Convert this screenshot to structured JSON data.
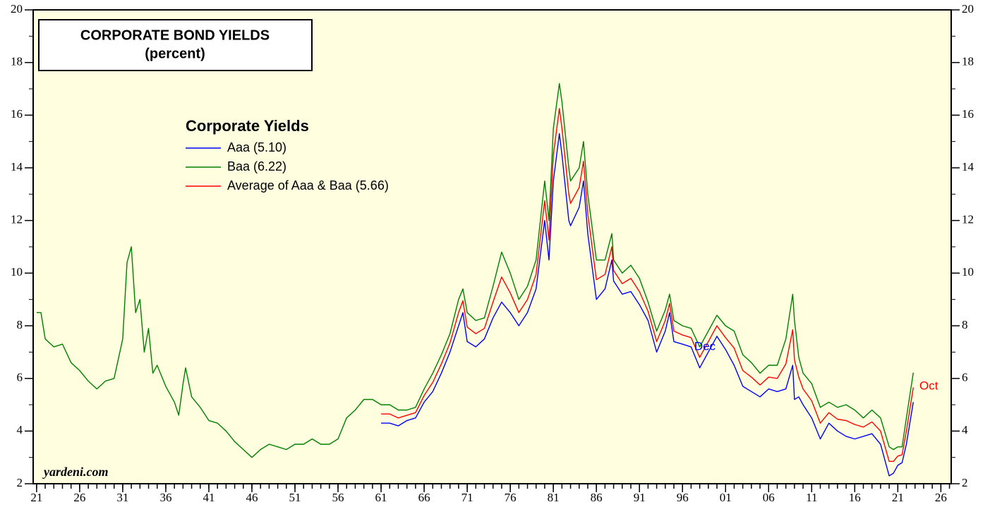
{
  "chart_data": {
    "type": "line",
    "title": [
      "CORPORATE BOND YIELDS",
      "(percent)"
    ],
    "legend_title": "Corporate Yields",
    "source": "yardeni.com",
    "xlim": [
      1920.6,
      2027.2
    ],
    "xticks": [
      {
        "value": 1921,
        "label": "21"
      },
      {
        "value": 1926,
        "label": "26"
      },
      {
        "value": 1931,
        "label": "31"
      },
      {
        "value": 1936,
        "label": "36"
      },
      {
        "value": 1941,
        "label": "41"
      },
      {
        "value": 1946,
        "label": "46"
      },
      {
        "value": 1951,
        "label": "51"
      },
      {
        "value": 1956,
        "label": "56"
      },
      {
        "value": 1961,
        "label": "61"
      },
      {
        "value": 1966,
        "label": "66"
      },
      {
        "value": 1971,
        "label": "71"
      },
      {
        "value": 1976,
        "label": "76"
      },
      {
        "value": 1981,
        "label": "81"
      },
      {
        "value": 1986,
        "label": "86"
      },
      {
        "value": 1991,
        "label": "91"
      },
      {
        "value": 1996,
        "label": "96"
      },
      {
        "value": 2001,
        "label": "01"
      },
      {
        "value": 2006,
        "label": "06"
      },
      {
        "value": 2011,
        "label": "11"
      },
      {
        "value": 2016,
        "label": "16"
      },
      {
        "value": 2021,
        "label": "21"
      },
      {
        "value": 2026,
        "label": "26"
      }
    ],
    "xminor_step": 1,
    "ylim": [
      2,
      20
    ],
    "yticks": [
      2,
      4,
      6,
      8,
      10,
      12,
      14,
      16,
      18,
      20
    ],
    "yminor_step": 1,
    "grid": false,
    "background": "#ffffe0",
    "series": [
      {
        "name": "Aaa (5.10)",
        "color": "#0000ff",
        "x": [
          1961,
          1962,
          1963,
          1964,
          1965,
          1966,
          1967,
          1968,
          1969,
          1970,
          1970.5,
          1971,
          1972,
          1973,
          1974,
          1975,
          1976,
          1977,
          1978,
          1979,
          1980,
          1980.5,
          1981,
          1981.7,
          1982,
          1982.8,
          1983,
          1984,
          1984.5,
          1985,
          1986,
          1987,
          1987.8,
          1988,
          1989,
          1990,
          1991,
          1992,
          1993,
          1994,
          1994.5,
          1995,
          1996,
          1997,
          1998,
          1999,
          2000,
          2001,
          2002,
          2003,
          2004,
          2005,
          2006,
          2007,
          2008,
          2008.8,
          2009,
          2009.5,
          2010,
          2011,
          2012,
          2013,
          2014,
          2015,
          2016,
          2017,
          2018,
          2019,
          2020,
          2020.5,
          2021,
          2021.5,
          2022,
          2022.8
        ],
        "values": [
          4.3,
          4.3,
          4.2,
          4.4,
          4.5,
          5.1,
          5.5,
          6.2,
          7.0,
          8.0,
          8.5,
          7.4,
          7.2,
          7.5,
          8.3,
          8.9,
          8.5,
          8.0,
          8.5,
          9.4,
          12.0,
          10.5,
          13.5,
          15.3,
          14.5,
          12.0,
          11.8,
          12.5,
          13.5,
          11.5,
          9.0,
          9.4,
          10.5,
          9.7,
          9.2,
          9.3,
          8.8,
          8.2,
          7.0,
          7.8,
          8.5,
          7.4,
          7.3,
          7.2,
          6.4,
          7.0,
          7.6,
          7.1,
          6.5,
          5.7,
          5.5,
          5.3,
          5.6,
          5.5,
          5.6,
          6.5,
          5.2,
          5.3,
          5.0,
          4.5,
          3.7,
          4.3,
          4.0,
          3.8,
          3.7,
          3.8,
          3.9,
          3.5,
          2.3,
          2.4,
          2.7,
          2.8,
          3.5,
          5.1
        ]
      },
      {
        "name": "Baa (6.22)",
        "color": "#008000",
        "x": [
          1921,
          1921.5,
          1922,
          1923,
          1924,
          1925,
          1926,
          1927,
          1928,
          1929,
          1930,
          1931,
          1931.5,
          1932,
          1932.5,
          1933,
          1933.5,
          1934,
          1934.5,
          1935,
          1936,
          1937,
          1937.5,
          1938,
          1938.3,
          1939,
          1940,
          1941,
          1942,
          1943,
          1944,
          1945,
          1946,
          1947,
          1948,
          1949,
          1950,
          1951,
          1952,
          1953,
          1954,
          1955,
          1956,
          1957,
          1958,
          1959,
          1960,
          1961,
          1962,
          1963,
          1964,
          1965,
          1966,
          1967,
          1968,
          1969,
          1970,
          1970.5,
          1971,
          1972,
          1973,
          1974,
          1975,
          1976,
          1977,
          1978,
          1979,
          1980,
          1980.5,
          1981,
          1981.7,
          1982,
          1982.8,
          1983,
          1984,
          1984.5,
          1985,
          1986,
          1987,
          1987.8,
          1988,
          1989,
          1990,
          1991,
          1992,
          1993,
          1994,
          1994.5,
          1995,
          1996,
          1997,
          1998,
          1999,
          2000,
          2001,
          2002,
          2003,
          2004,
          2005,
          2006,
          2007,
          2008,
          2008.8,
          2009,
          2009.5,
          2010,
          2011,
          2012,
          2013,
          2014,
          2015,
          2016,
          2017,
          2018,
          2019,
          2020,
          2020.5,
          2021,
          2021.5,
          2022,
          2022.8
        ],
        "values": [
          8.5,
          8.5,
          7.5,
          7.2,
          7.3,
          6.6,
          6.3,
          5.9,
          5.6,
          5.9,
          6.0,
          7.5,
          10.4,
          11.0,
          8.5,
          9.0,
          7.0,
          7.9,
          6.2,
          6.5,
          5.7,
          5.1,
          4.6,
          5.8,
          6.4,
          5.3,
          4.9,
          4.4,
          4.3,
          4.0,
          3.6,
          3.3,
          3.0,
          3.3,
          3.5,
          3.4,
          3.3,
          3.5,
          3.5,
          3.7,
          3.5,
          3.5,
          3.7,
          4.5,
          4.8,
          5.2,
          5.2,
          5.0,
          5.0,
          4.8,
          4.8,
          4.9,
          5.6,
          6.2,
          6.9,
          7.7,
          9.0,
          9.4,
          8.5,
          8.2,
          8.3,
          9.5,
          10.8,
          10.0,
          9.0,
          9.5,
          10.5,
          13.5,
          12.0,
          15.5,
          17.2,
          16.5,
          14.0,
          13.5,
          14.0,
          15.0,
          13.0,
          10.5,
          10.5,
          11.5,
          10.5,
          10.0,
          10.3,
          9.8,
          8.9,
          7.8,
          8.6,
          9.2,
          8.2,
          8.0,
          7.9,
          7.2,
          7.8,
          8.4,
          8.0,
          7.8,
          6.9,
          6.6,
          6.2,
          6.5,
          6.5,
          7.5,
          9.2,
          8.2,
          6.8,
          6.2,
          5.8,
          4.9,
          5.1,
          4.9,
          5.0,
          4.8,
          4.5,
          4.8,
          4.5,
          3.4,
          3.3,
          3.4,
          3.4,
          4.5,
          6.22
        ]
      },
      {
        "name": "Average of Aaa & Baa (5.66)",
        "color": "#ff0000",
        "x": [
          1961,
          1962,
          1963,
          1964,
          1965,
          1966,
          1967,
          1968,
          1969,
          1970,
          1970.5,
          1971,
          1972,
          1973,
          1974,
          1975,
          1976,
          1977,
          1978,
          1979,
          1980,
          1980.5,
          1981,
          1981.7,
          1982,
          1982.8,
          1983,
          1984,
          1984.5,
          1985,
          1986,
          1987,
          1987.8,
          1988,
          1989,
          1990,
          1991,
          1992,
          1993,
          1994,
          1994.5,
          1995,
          1996,
          1997,
          1998,
          1999,
          2000,
          2001,
          2002,
          2003,
          2004,
          2005,
          2006,
          2007,
          2008,
          2008.8,
          2009,
          2009.5,
          2010,
          2011,
          2012,
          2013,
          2014,
          2015,
          2016,
          2017,
          2018,
          2019,
          2020,
          2020.5,
          2021,
          2021.5,
          2022,
          2022.8
        ],
        "values": [
          4.65,
          4.65,
          4.5,
          4.6,
          4.7,
          5.35,
          5.85,
          6.55,
          7.35,
          8.5,
          8.95,
          7.95,
          7.7,
          7.9,
          8.9,
          9.85,
          9.25,
          8.5,
          9.0,
          9.95,
          12.75,
          11.25,
          14.5,
          16.25,
          15.5,
          13.0,
          12.65,
          13.25,
          14.25,
          12.25,
          9.75,
          9.95,
          11.0,
          10.1,
          9.6,
          9.8,
          9.3,
          8.55,
          7.4,
          8.2,
          8.85,
          7.8,
          7.65,
          7.55,
          6.8,
          7.4,
          8.0,
          7.55,
          7.15,
          6.3,
          6.05,
          5.75,
          6.05,
          6.0,
          6.55,
          7.85,
          6.7,
          6.05,
          5.6,
          5.15,
          4.3,
          4.7,
          4.45,
          4.4,
          4.25,
          4.15,
          4.35,
          4.0,
          2.85,
          2.85,
          3.05,
          3.1,
          4.0,
          5.66
        ]
      }
    ],
    "annotations": [
      {
        "text": "Dec",
        "x": 1998.6,
        "y": 7.2,
        "color": "#0000ff"
      },
      {
        "text": "Oct",
        "x": 2024.6,
        "y": 5.7,
        "color": "#ff0000"
      }
    ]
  }
}
